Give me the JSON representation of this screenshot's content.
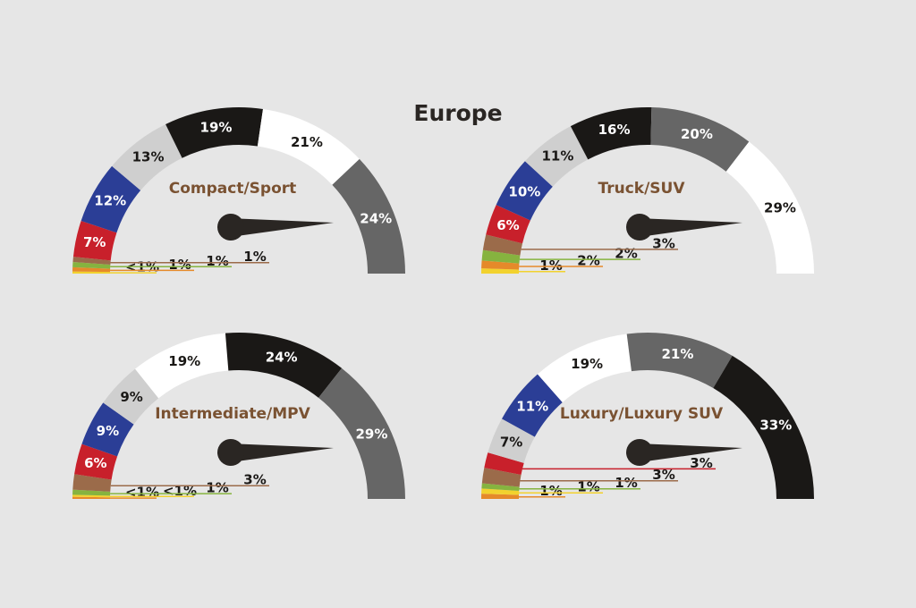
{
  "title": "Europe",
  "colors": {
    "black": "#1a1816",
    "white": "#ffffff",
    "dark_gray": "#666666",
    "light_gray": "#cfcfcf",
    "blue": "#2b3e96",
    "red": "#c8202b",
    "brown": "#9b6b4a",
    "green": "#86b33f",
    "orange": "#e58a2a",
    "yellow": "#f2d22e",
    "label_brown": "#7a5232",
    "needle": "#2a2623"
  },
  "chart_data": [
    {
      "type": "gauge",
      "title": "Compact/Sport",
      "segments": [
        {
          "color": "yellow",
          "value": 0.4,
          "label": "<1%"
        },
        {
          "color": "orange",
          "value": 0.8,
          "label": "1%"
        },
        {
          "color": "green",
          "value": 1,
          "label": "1%"
        },
        {
          "color": "brown",
          "value": 1,
          "label": "1%"
        },
        {
          "color": "red",
          "value": 7,
          "label": "7%"
        },
        {
          "color": "blue",
          "value": 12,
          "label": "12%"
        },
        {
          "color": "light_gray",
          "value": 13,
          "label": "13%"
        },
        {
          "color": "black",
          "value": 19,
          "label": "19%"
        },
        {
          "color": "white",
          "value": 21,
          "label": "21%"
        },
        {
          "color": "dark_gray",
          "value": 24,
          "label": "24%"
        }
      ]
    },
    {
      "type": "gauge",
      "title": "Truck/SUV",
      "segments": [
        {
          "color": "yellow",
          "value": 1,
          "label": "1%"
        },
        {
          "color": "orange",
          "value": 1.5,
          "label": "2%"
        },
        {
          "color": "green",
          "value": 2,
          "label": "2%"
        },
        {
          "color": "brown",
          "value": 3,
          "label": "3%"
        },
        {
          "color": "red",
          "value": 6,
          "label": "6%"
        },
        {
          "color": "blue",
          "value": 10,
          "label": "10%"
        },
        {
          "color": "light_gray",
          "value": 11,
          "label": "11%"
        },
        {
          "color": "black",
          "value": 16,
          "label": "16%"
        },
        {
          "color": "dark_gray",
          "value": 20,
          "label": "20%"
        },
        {
          "color": "white",
          "value": 29,
          "label": "29%"
        }
      ]
    },
    {
      "type": "gauge",
      "title": "Intermediate/MPV",
      "segments": [
        {
          "color": "orange",
          "value": 0.4,
          "label": "<1%"
        },
        {
          "color": "yellow",
          "value": 0.4,
          "label": "<1%"
        },
        {
          "color": "green",
          "value": 1,
          "label": "1%"
        },
        {
          "color": "brown",
          "value": 3,
          "label": "3%"
        },
        {
          "color": "red",
          "value": 6,
          "label": "6%"
        },
        {
          "color": "blue",
          "value": 9,
          "label": "9%"
        },
        {
          "color": "light_gray",
          "value": 9,
          "label": "9%"
        },
        {
          "color": "white",
          "value": 19,
          "label": "19%"
        },
        {
          "color": "black",
          "value": 24,
          "label": "24%"
        },
        {
          "color": "dark_gray",
          "value": 29,
          "label": "29%"
        }
      ]
    },
    {
      "type": "gauge",
      "title": "Luxury/Luxury SUV",
      "segments": [
        {
          "color": "orange",
          "value": 1,
          "label": "1%"
        },
        {
          "color": "yellow",
          "value": 1,
          "label": "1%"
        },
        {
          "color": "green",
          "value": 1,
          "label": "1%"
        },
        {
          "color": "brown",
          "value": 3,
          "label": "3%"
        },
        {
          "color": "red",
          "value": 3,
          "label": "3%"
        },
        {
          "color": "light_gray",
          "value": 7,
          "label": "7%"
        },
        {
          "color": "blue",
          "value": 11,
          "label": "11%"
        },
        {
          "color": "white",
          "value": 19,
          "label": "19%"
        },
        {
          "color": "dark_gray",
          "value": 21,
          "label": "21%"
        },
        {
          "color": "black",
          "value": 33,
          "label": "33%"
        }
      ]
    }
  ]
}
